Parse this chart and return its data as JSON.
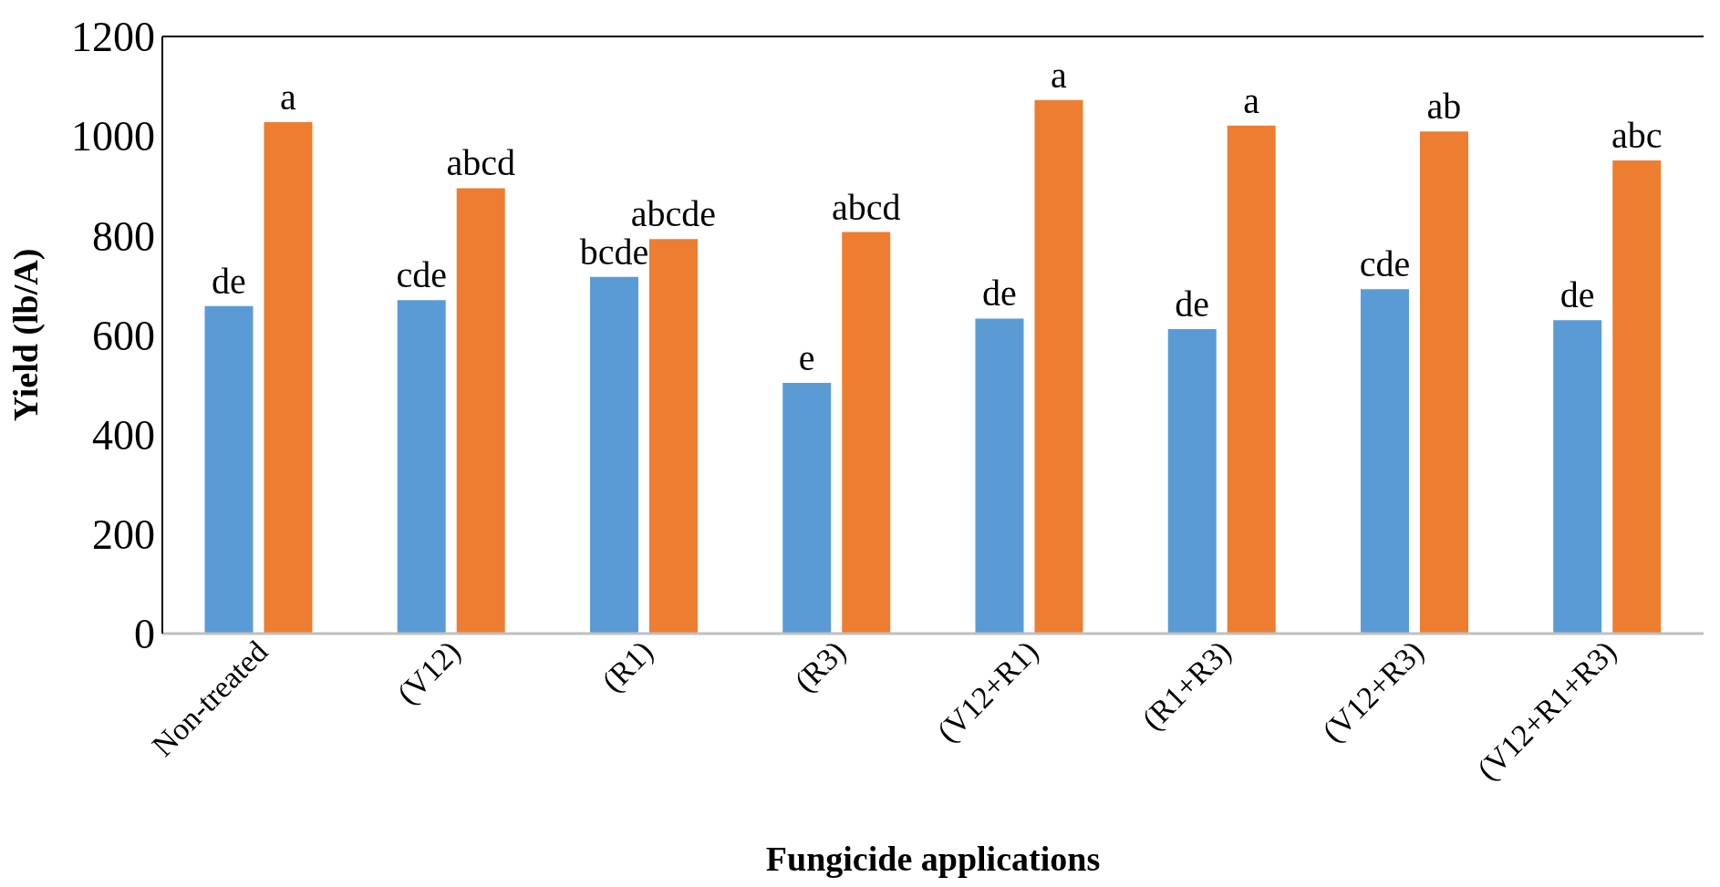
{
  "chart_data": {
    "type": "bar",
    "xlabel": "Fungicide applications",
    "ylabel": "Yield (lb/A)",
    "categories": [
      "Non-treated",
      "(V12)",
      "(R1)",
      "(R3)",
      "(V12+R1)",
      "(R1+R3)",
      "(V12+R3)",
      "(V12+R1+R3)"
    ],
    "series": [
      {
        "color": "#5b9bd5",
        "values": [
          658,
          670,
          717,
          504,
          633,
          612,
          692,
          630
        ],
        "value_labels": [
          "de",
          "cde",
          "bcde",
          "e",
          "de",
          "de",
          "cde",
          "de"
        ]
      },
      {
        "color": "#ed7d31",
        "values": [
          1028,
          895,
          793,
          807,
          1072,
          1021,
          1009,
          951
        ],
        "value_labels": [
          "a",
          "abcd",
          "abcde",
          "abcd",
          "a",
          "a",
          "ab",
          "abc"
        ]
      }
    ],
    "ylim": [
      0,
      1200
    ],
    "yticks": [
      0,
      200,
      400,
      600,
      800,
      1000,
      1200
    ],
    "legend": false
  }
}
